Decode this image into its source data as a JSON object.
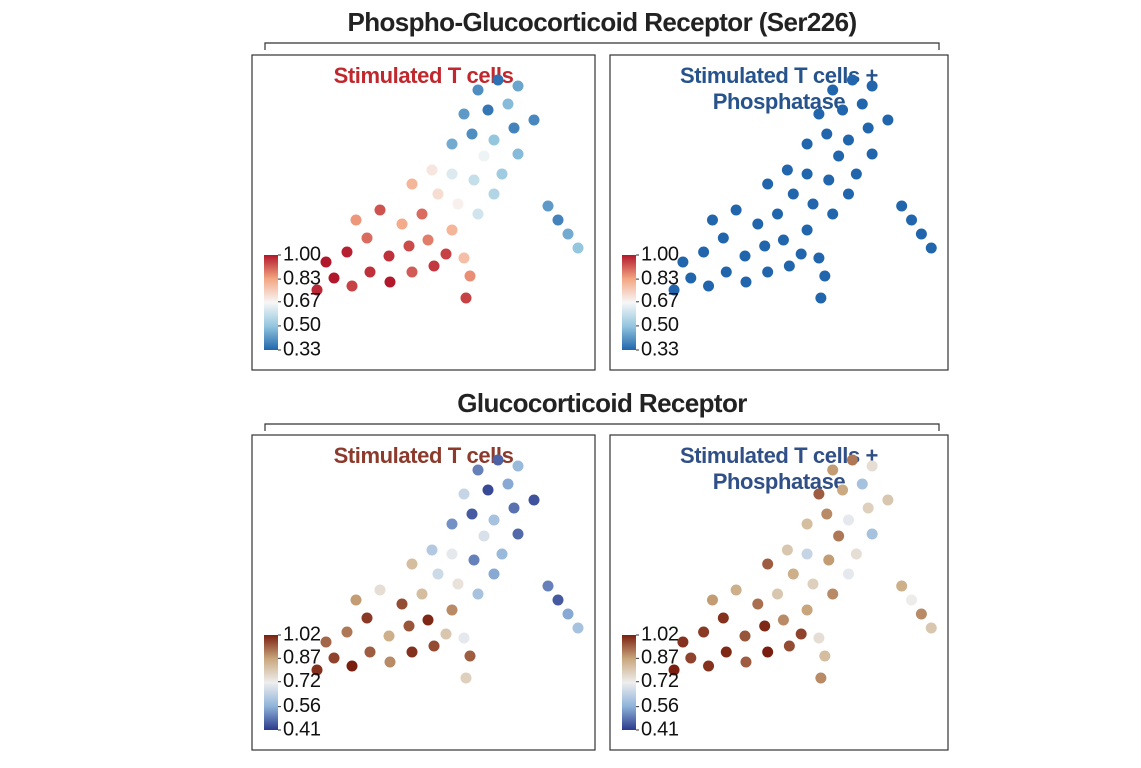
{
  "section_titles": [
    "Phospho-Glucocorticoid Receptor (Ser226)",
    "Glucocorticoid Receptor"
  ],
  "chart_data": [
    {
      "type": "scatter",
      "title": [
        "Stimulated T cells"
      ],
      "title_color": "#c0282d",
      "xlim": [
        0,
        343
      ],
      "ylim": [
        315,
        0
      ],
      "x": [
        65,
        82,
        100,
        118,
        138,
        160,
        182,
        95,
        115,
        137,
        157,
        176,
        194,
        74,
        104,
        128,
        150,
        170,
        200,
        214,
        218,
        212,
        186,
        206,
        226,
        242,
        160,
        180,
        200,
        222,
        250,
        266,
        232,
        200,
        220,
        242,
        262,
        212,
        236,
        256,
        226,
        246,
        266,
        282,
        296,
        306,
        316,
        326
      ],
      "y": [
        80,
        92,
        84,
        98,
        88,
        98,
        104,
        118,
        132,
        114,
        124,
        130,
        116,
        108,
        150,
        160,
        146,
        156,
        140,
        72,
        94,
        112,
        176,
        166,
        156,
        176,
        186,
        200,
        196,
        190,
        196,
        216,
        214,
        226,
        236,
        230,
        242,
        256,
        260,
        266,
        280,
        290,
        284,
        250,
        164,
        150,
        136,
        122
      ],
      "values": [
        0.98,
        1,
        0.95,
        0.97,
        1,
        0.92,
        0.96,
        0.99,
        0.9,
        0.97,
        0.94,
        0.88,
        0.95,
        1,
        0.85,
        0.93,
        0.82,
        0.9,
        0.8,
        0.95,
        0.86,
        0.78,
        0.72,
        0.68,
        0.6,
        0.55,
        0.8,
        0.7,
        0.62,
        0.58,
        0.52,
        0.48,
        0.65,
        0.45,
        0.4,
        0.5,
        0.38,
        0.42,
        0.36,
        0.48,
        0.4,
        0.35,
        0.44,
        0.39,
        0.42,
        0.38,
        0.45,
        0.5
      ],
      "colorscale": [
        "#2166ac",
        "#92c5de",
        "#f7f7f7",
        "#f4a582",
        "#b2182b"
      ],
      "clim": [
        0.33,
        1
      ],
      "cticks": [
        {
          "value": 1,
          "label": "1.00"
        },
        0.83,
        0.67,
        {
          "value": 0.5,
          "label": "0.50"
        },
        0.33
      ]
    },
    {
      "type": "scatter",
      "title": [
        "Stimulated T cells +",
        "Phosphatase"
      ],
      "title_color": "#27538c",
      "xlim": [
        0,
        343
      ],
      "ylim": [
        315,
        0
      ],
      "x": [
        65,
        82,
        100,
        118,
        138,
        160,
        182,
        95,
        115,
        137,
        157,
        176,
        194,
        74,
        104,
        128,
        150,
        170,
        200,
        214,
        218,
        212,
        186,
        206,
        226,
        242,
        160,
        180,
        200,
        222,
        250,
        266,
        232,
        200,
        220,
        242,
        262,
        212,
        236,
        256,
        226,
        246,
        266,
        282,
        296,
        306,
        316,
        326
      ],
      "y": [
        80,
        92,
        84,
        98,
        88,
        98,
        104,
        118,
        132,
        114,
        124,
        130,
        116,
        108,
        150,
        160,
        146,
        156,
        140,
        72,
        94,
        112,
        176,
        166,
        156,
        176,
        186,
        200,
        196,
        190,
        196,
        216,
        214,
        226,
        236,
        230,
        242,
        256,
        260,
        266,
        280,
        290,
        284,
        250,
        164,
        150,
        136,
        122
      ],
      "values": [
        0.33,
        0.33,
        0.33,
        0.33,
        0.33,
        0.33,
        0.33,
        0.33,
        0.33,
        0.33,
        0.33,
        0.33,
        0.33,
        0.33,
        0.33,
        0.33,
        0.33,
        0.33,
        0.33,
        0.33,
        0.33,
        0.33,
        0.33,
        0.33,
        0.33,
        0.33,
        0.33,
        0.33,
        0.33,
        0.33,
        0.33,
        0.33,
        0.33,
        0.33,
        0.33,
        0.33,
        0.33,
        0.33,
        0.33,
        0.33,
        0.33,
        0.33,
        0.33,
        0.33,
        0.33,
        0.33,
        0.33,
        0.33
      ],
      "colorscale": [
        "#2166ac",
        "#92c5de",
        "#f7f7f7",
        "#f4a582",
        "#b2182b"
      ],
      "clim": [
        0.33,
        1
      ],
      "cticks": [
        {
          "value": 1,
          "label": "1.00"
        },
        0.83,
        0.67,
        {
          "value": 0.5,
          "label": "0.50"
        },
        0.33
      ]
    },
    {
      "type": "scatter",
      "title": [
        "Stimulated T cells"
      ],
      "title_color": "#8b3a2b",
      "xlim": [
        0,
        343
      ],
      "ylim": [
        315,
        0
      ],
      "x": [
        65,
        82,
        100,
        118,
        138,
        160,
        182,
        95,
        115,
        137,
        157,
        176,
        194,
        74,
        104,
        128,
        150,
        170,
        200,
        214,
        218,
        212,
        186,
        206,
        226,
        242,
        160,
        180,
        200,
        222,
        250,
        266,
        232,
        200,
        220,
        242,
        262,
        212,
        236,
        256,
        226,
        246,
        266,
        282,
        296,
        306,
        316,
        326
      ],
      "y": [
        80,
        92,
        84,
        98,
        88,
        98,
        104,
        118,
        132,
        114,
        124,
        130,
        116,
        108,
        150,
        160,
        146,
        156,
        140,
        72,
        94,
        112,
        176,
        166,
        156,
        176,
        186,
        200,
        196,
        190,
        196,
        216,
        214,
        226,
        236,
        230,
        242,
        256,
        260,
        266,
        280,
        290,
        284,
        250,
        164,
        150,
        136,
        122
      ],
      "values": [
        1,
        0.98,
        1.02,
        0.95,
        0.9,
        1,
        0.97,
        0.92,
        0.99,
        0.85,
        0.96,
        1.01,
        0.8,
        0.94,
        0.88,
        0.75,
        0.97,
        0.82,
        0.9,
        0.78,
        0.95,
        0.7,
        0.66,
        0.74,
        0.6,
        0.55,
        0.82,
        0.62,
        0.7,
        0.5,
        0.58,
        0.47,
        0.68,
        0.52,
        0.45,
        0.6,
        0.48,
        0.65,
        0.43,
        0.55,
        0.5,
        0.46,
        0.58,
        0.44,
        0.5,
        0.45,
        0.55,
        0.6
      ],
      "colorscale": [
        "#2b3a8c",
        "#8fb3d9",
        "#eeeeee",
        "#c9a77c",
        "#7a1f0f"
      ],
      "clim": [
        0.41,
        1.02
      ],
      "cticks": [
        1.02,
        0.87,
        0.72,
        0.56,
        0.41
      ]
    },
    {
      "type": "scatter",
      "title": [
        "Stimulated T cells +",
        "Phosphatase"
      ],
      "title_color": "#2f4f86",
      "xlim": [
        0,
        343
      ],
      "ylim": [
        315,
        0
      ],
      "x": [
        65,
        82,
        100,
        118,
        138,
        160,
        182,
        95,
        115,
        137,
        157,
        176,
        194,
        74,
        104,
        128,
        150,
        170,
        200,
        214,
        218,
        212,
        186,
        206,
        226,
        242,
        160,
        180,
        200,
        222,
        250,
        266,
        232,
        200,
        220,
        242,
        262,
        212,
        236,
        256,
        226,
        246,
        266,
        282,
        296,
        306,
        316,
        326
      ],
      "y": [
        80,
        92,
        84,
        98,
        88,
        98,
        104,
        118,
        132,
        114,
        124,
        130,
        116,
        108,
        150,
        160,
        146,
        156,
        140,
        72,
        94,
        112,
        176,
        166,
        156,
        176,
        186,
        200,
        196,
        190,
        196,
        216,
        214,
        226,
        236,
        230,
        242,
        256,
        260,
        266,
        280,
        290,
        284,
        250,
        164,
        150,
        136,
        122
      ],
      "values": [
        1.02,
        0.98,
        1,
        1.01,
        0.95,
        1.02,
        0.97,
        0.99,
        1,
        0.96,
        1.01,
        0.9,
        0.98,
        1,
        0.88,
        0.85,
        0.93,
        0.8,
        0.87,
        0.9,
        0.82,
        0.75,
        0.85,
        0.78,
        0.9,
        0.7,
        0.95,
        0.8,
        0.65,
        0.88,
        0.75,
        0.6,
        0.92,
        0.82,
        0.9,
        0.7,
        0.78,
        0.95,
        0.86,
        0.6,
        0.88,
        0.92,
        0.75,
        0.8,
        0.85,
        0.72,
        0.9,
        0.8
      ],
      "colorscale": [
        "#2b3a8c",
        "#8fb3d9",
        "#eeeeee",
        "#c9a77c",
        "#7a1f0f"
      ],
      "clim": [
        0.41,
        1.02
      ],
      "cticks": [
        1.02,
        0.87,
        0.72,
        0.56,
        0.41
      ]
    }
  ]
}
